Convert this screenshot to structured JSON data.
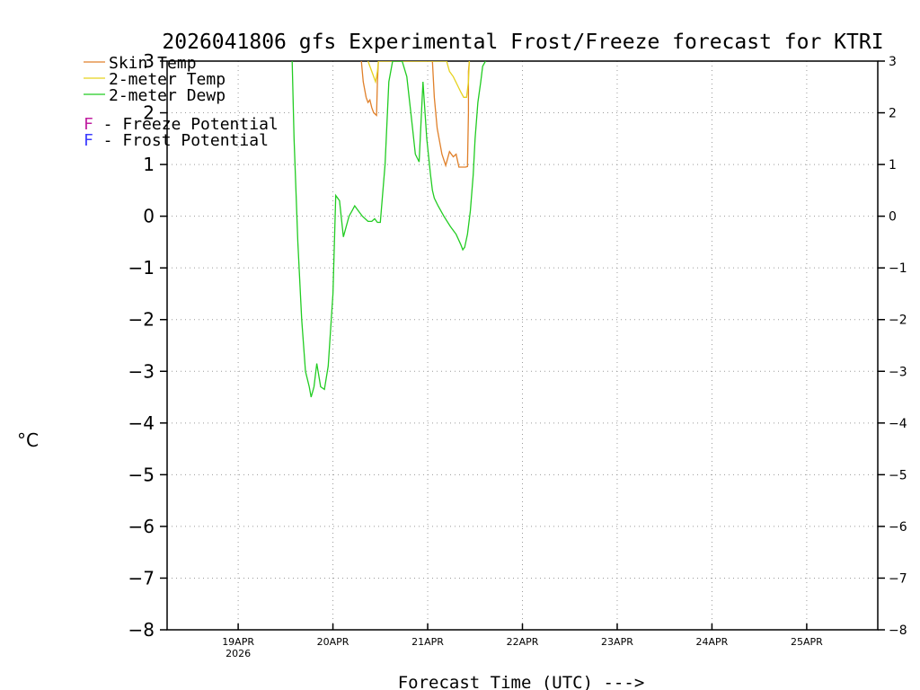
{
  "chart_data": {
    "type": "line",
    "title": "2026041806 gfs Experimental Frost/Freeze forecast for KTRI",
    "xlabel": "Forecast Time (UTC) --->",
    "ylabel": "°C",
    "ylim": [
      -8,
      3
    ],
    "xlim": [
      0,
      7.5
    ],
    "yticks": [
      -8,
      -7,
      -6,
      -5,
      -4,
      -3,
      -2,
      -1,
      0,
      1,
      2,
      3
    ],
    "xticks": [
      {
        "x": 0.75,
        "label": "19APR",
        "sublabel": "2026"
      },
      {
        "x": 1.75,
        "label": "20APR"
      },
      {
        "x": 2.75,
        "label": "21APR"
      },
      {
        "x": 3.75,
        "label": "22APR"
      },
      {
        "x": 4.75,
        "label": "23APR"
      },
      {
        "x": 5.75,
        "label": "24APR"
      },
      {
        "x": 6.75,
        "label": "25APR"
      }
    ],
    "grid": true,
    "legend": [
      {
        "name": "Skin Temp",
        "color": "#e0802a"
      },
      {
        "name": "2-meter Temp",
        "color": "#e6d21e"
      },
      {
        "name": "2-meter Dewp",
        "color": "#22cc22"
      }
    ],
    "annotations": [
      {
        "letter": "F",
        "text": " - Freeze Potential",
        "color": "#c01fa0"
      },
      {
        "letter": "F",
        "text": " - Frost Potential",
        "color": "#3c3cff"
      }
    ],
    "series": [
      {
        "name": "Skin Temp",
        "color": "#e0802a",
        "x": [
          2.05,
          2.07,
          2.1,
          2.12,
          2.14,
          2.16,
          2.18,
          2.21,
          2.22,
          2.23,
          2.8,
          2.82,
          2.85,
          2.9,
          2.94,
          2.98,
          3.02,
          3.05,
          3.08,
          3.1,
          3.12,
          3.15,
          3.17,
          3.18,
          3.18,
          3.19
        ],
        "values": [
          3.0,
          2.6,
          2.3,
          2.2,
          2.25,
          2.1,
          2.0,
          1.95,
          2.6,
          3.0,
          3.0,
          2.3,
          1.7,
          1.2,
          0.98,
          1.25,
          1.15,
          1.2,
          0.95,
          0.95,
          0.95,
          0.95,
          0.96,
          2.0,
          2.8,
          3.0
        ]
      },
      {
        "name": "2-meter Temp",
        "color": "#e6d21e",
        "x": [
          2.12,
          2.16,
          2.2,
          2.22,
          2.23,
          2.95,
          2.98,
          3.02,
          3.06,
          3.1,
          3.13,
          3.16,
          3.18,
          3.19
        ],
        "values": [
          3.0,
          2.8,
          2.6,
          2.8,
          3.0,
          3.0,
          2.8,
          2.7,
          2.55,
          2.4,
          2.3,
          2.3,
          2.6,
          3.0
        ]
      },
      {
        "name": "2-meter Dewp",
        "color": "#22cc22",
        "x": [
          1.32,
          1.34,
          1.38,
          1.42,
          1.46,
          1.5,
          1.52,
          1.55,
          1.58,
          1.62,
          1.66,
          1.7,
          1.75,
          1.78,
          1.82,
          1.86,
          1.92,
          1.95,
          1.98,
          2.02,
          2.06,
          2.12,
          2.16,
          2.19,
          2.22,
          2.25,
          2.3,
          2.34,
          2.38,
          2.43,
          2.48,
          2.53,
          2.56,
          2.59,
          2.62,
          2.66,
          2.7,
          2.74,
          2.78,
          2.8,
          2.82,
          2.86,
          2.92,
          2.99,
          3.05,
          3.1,
          3.12,
          3.14,
          3.17,
          3.2,
          3.23,
          3.25,
          3.28,
          3.31,
          3.33,
          3.36
        ],
        "values": [
          3.0,
          1.5,
          -0.5,
          -2.0,
          -3.0,
          -3.3,
          -3.5,
          -3.3,
          -2.85,
          -3.3,
          -3.35,
          -2.9,
          -1.5,
          0.4,
          0.3,
          -0.4,
          0.0,
          0.1,
          0.2,
          0.1,
          0.0,
          -0.1,
          -0.1,
          -0.05,
          -0.12,
          -0.12,
          1.0,
          2.6,
          3.0,
          3.0,
          3.0,
          2.7,
          2.2,
          1.7,
          1.2,
          1.05,
          2.6,
          1.5,
          0.8,
          0.5,
          0.35,
          0.2,
          0.0,
          -0.2,
          -0.35,
          -0.55,
          -0.65,
          -0.6,
          -0.35,
          0.1,
          0.8,
          1.5,
          2.2,
          2.6,
          2.9,
          3.0
        ]
      }
    ]
  }
}
